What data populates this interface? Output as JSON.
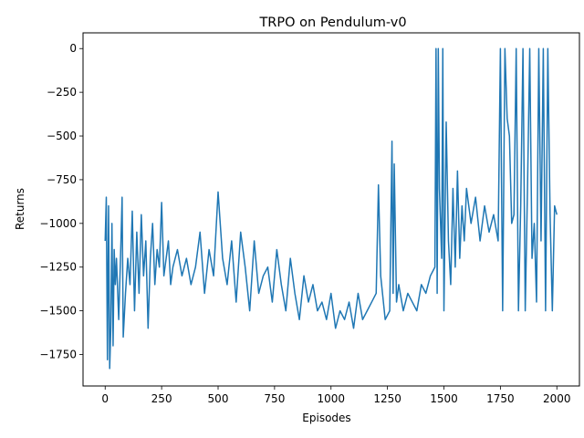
{
  "chart_data": {
    "type": "line",
    "title": "TRPO on Pendulum-v0",
    "xlabel": "Episodes",
    "ylabel": "Returns",
    "xlim": [
      -98,
      2100
    ],
    "ylim": [
      -1930,
      90
    ],
    "xticks": [
      0,
      250,
      500,
      750,
      1000,
      1250,
      1500,
      1750,
      2000
    ],
    "yticks": [
      0,
      -250,
      -500,
      -750,
      -1000,
      -1250,
      -1500,
      -1750
    ],
    "xtick_labels": [
      "0",
      "250",
      "500",
      "750",
      "1000",
      "1250",
      "1500",
      "1750",
      "2000"
    ],
    "ytick_labels": [
      "0",
      "−250",
      "−500",
      "−750",
      "−1000",
      "−1250",
      "−1500",
      "−1750"
    ],
    "grid": false,
    "legend": "none",
    "colors": {
      "line": "#1f77b4",
      "axes": "#000000",
      "background": "#ffffff"
    },
    "series": [
      {
        "x": [
          0,
          5,
          10,
          15,
          20,
          25,
          30,
          35,
          40,
          45,
          50,
          60,
          70,
          75,
          80,
          90,
          100,
          110,
          120,
          130,
          140,
          150,
          160,
          170,
          180,
          190,
          200,
          210,
          220,
          230,
          240,
          250,
          260,
          270,
          280,
          290,
          300,
          320,
          340,
          360,
          380,
          400,
          420,
          440,
          460,
          480,
          500,
          520,
          540,
          560,
          580,
          600,
          620,
          640,
          660,
          680,
          700,
          720,
          740,
          760,
          780,
          800,
          820,
          840,
          860,
          880,
          900,
          920,
          940,
          960,
          980,
          1000,
          1020,
          1040,
          1060,
          1080,
          1100,
          1120,
          1140,
          1160,
          1180,
          1200,
          1210,
          1220,
          1240,
          1260,
          1270,
          1275,
          1280,
          1290,
          1300,
          1320,
          1340,
          1360,
          1380,
          1400,
          1420,
          1440,
          1460,
          1465,
          1470,
          1475,
          1480,
          1490,
          1495,
          1500,
          1510,
          1520,
          1530,
          1540,
          1550,
          1560,
          1570,
          1580,
          1590,
          1600,
          1620,
          1640,
          1660,
          1680,
          1700,
          1720,
          1740,
          1750,
          1760,
          1770,
          1780,
          1790,
          1800,
          1810,
          1820,
          1830,
          1840,
          1850,
          1860,
          1870,
          1880,
          1890,
          1900,
          1910,
          1920,
          1930,
          1940,
          1950,
          1960,
          1970,
          1980,
          1990,
          2000
        ],
        "y": [
          -1100,
          -850,
          -1780,
          -900,
          -1830,
          -1600,
          -1000,
          -1700,
          -1150,
          -1350,
          -1200,
          -1550,
          -1100,
          -850,
          -1650,
          -1400,
          -1200,
          -1350,
          -930,
          -1500,
          -1050,
          -1400,
          -950,
          -1300,
          -1100,
          -1600,
          -1200,
          -1000,
          -1350,
          -1150,
          -1250,
          -880,
          -1300,
          -1200,
          -1100,
          -1350,
          -1250,
          -1150,
          -1300,
          -1200,
          -1350,
          -1250,
          -1050,
          -1400,
          -1150,
          -1300,
          -820,
          -1200,
          -1350,
          -1100,
          -1450,
          -1050,
          -1250,
          -1500,
          -1100,
          -1400,
          -1300,
          -1250,
          -1450,
          -1150,
          -1350,
          -1500,
          -1200,
          -1400,
          -1550,
          -1300,
          -1450,
          -1350,
          -1500,
          -1450,
          -1550,
          -1400,
          -1600,
          -1500,
          -1550,
          -1450,
          -1600,
          -1400,
          -1550,
          -1500,
          -1450,
          -1400,
          -780,
          -1300,
          -1550,
          -1500,
          -530,
          -1400,
          -660,
          -1450,
          -1350,
          -1500,
          -1400,
          -1450,
          -1500,
          -1350,
          -1400,
          -1300,
          -1250,
          0,
          -1400,
          0,
          -800,
          -1200,
          0,
          -1500,
          -420,
          -1100,
          -1350,
          -800,
          -1250,
          -700,
          -1200,
          -900,
          -1100,
          -800,
          -1000,
          -850,
          -1100,
          -900,
          -1050,
          -950,
          -1100,
          0,
          -1500,
          0,
          -400,
          -500,
          -1000,
          -950,
          0,
          -1500,
          -900,
          0,
          -1500,
          -800,
          0,
          -1200,
          -1000,
          -1450,
          0,
          -1100,
          0,
          -1500,
          0,
          -950,
          -1500,
          -900,
          -950
        ]
      }
    ]
  }
}
